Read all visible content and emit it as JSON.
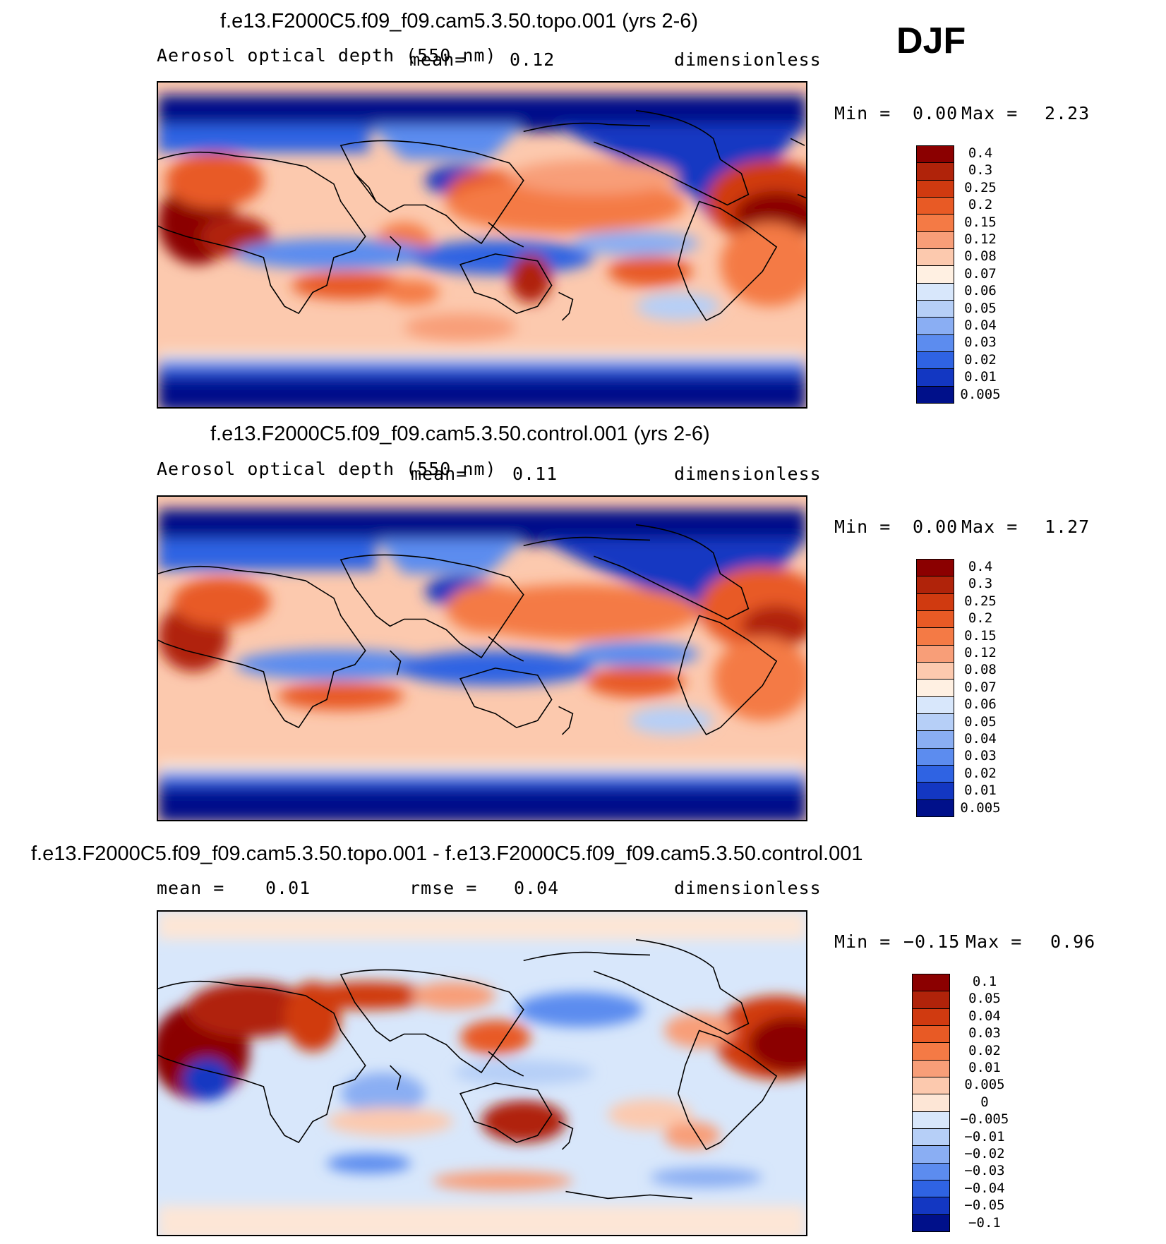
{
  "season": "DJF",
  "panels": [
    {
      "title": "f.e13.F2000C5.f09_f09.cam5.3.50.topo.001 (yrs 2-6)",
      "variable": "Aerosol optical depth (550 nm)",
      "mean_label": "mean=",
      "mean_value": "0.12",
      "units": "dimensionless",
      "min_label": "Min =",
      "min_value": "0.00",
      "max_label": "Max =",
      "max_value": "2.23",
      "levels": [
        "0.4",
        "0.3",
        "0.25",
        "0.2",
        "0.15",
        "0.12",
        "0.08",
        "0.07",
        "0.06",
        "0.05",
        "0.04",
        "0.03",
        "0.02",
        "0.01",
        "0.005"
      ]
    },
    {
      "title": "f.e13.F2000C5.f09_f09.cam5.3.50.control.001 (yrs 2-6)",
      "variable": "Aerosol optical depth (550 nm)",
      "mean_label": "mean=",
      "mean_value": "0.11",
      "units": "dimensionless",
      "min_label": "Min =",
      "min_value": "0.00",
      "max_label": "Max =",
      "max_value": "1.27",
      "levels": [
        "0.4",
        "0.3",
        "0.25",
        "0.2",
        "0.15",
        "0.12",
        "0.08",
        "0.07",
        "0.06",
        "0.05",
        "0.04",
        "0.03",
        "0.02",
        "0.01",
        "0.005"
      ]
    },
    {
      "title": "f.e13.F2000C5.f09_f09.cam5.3.50.topo.001 - f.e13.F2000C5.f09_f09.cam5.3.50.control.001",
      "mean_label": "mean =",
      "mean_value": "0.01",
      "rmse_label": "rmse =",
      "rmse_value": "0.04",
      "units": "dimensionless",
      "min_label": "Min =",
      "min_value": "−0.15",
      "max_label": "Max =",
      "max_value": "0.96",
      "levels": [
        "0.1",
        "0.05",
        "0.04",
        "0.03",
        "0.02",
        "0.01",
        "0.005",
        "0",
        "−0.005",
        "−0.01",
        "−0.02",
        "−0.03",
        "−0.04",
        "−0.05",
        "−0.1"
      ]
    }
  ],
  "colors": {
    "seq": [
      "#8b0000",
      "#b0230a",
      "#d03a10",
      "#e85a25",
      "#f47a45",
      "#f89e78",
      "#fcc9ae",
      "#fff0e2",
      "#d8e7fb",
      "#b6cff7",
      "#8aaef3",
      "#5c8cef",
      "#2f63e3",
      "#1337c2",
      "#00108a"
    ],
    "diff": [
      "#8b0000",
      "#b0230a",
      "#d03a10",
      "#e85a25",
      "#f47a45",
      "#f89e78",
      "#fcc9ae",
      "#fde6d6",
      "#d8e7fb",
      "#b6cff7",
      "#8aaef3",
      "#5c8cef",
      "#2f63e3",
      "#1337c2",
      "#00108a"
    ]
  }
}
